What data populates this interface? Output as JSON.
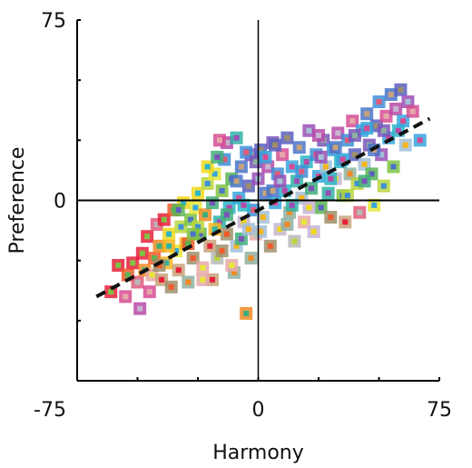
{
  "chart_data": {
    "type": "scatter",
    "title": "",
    "xlabel": "Harmony",
    "ylabel": "Preference",
    "xlim": [
      -75,
      75
    ],
    "ylim": [
      -75,
      75
    ],
    "x_tick_labels": [
      "-75",
      "0",
      "75"
    ],
    "y_tick_labels": [
      "75",
      "0"
    ],
    "grid": false,
    "legend": "none",
    "marker": "square-with-inner-square",
    "trendline": {
      "style": "dashed",
      "color": "#111111",
      "x": [
        -67,
        71
      ],
      "y": [
        -40,
        34
      ]
    },
    "point_colors": [
      "#e8203a",
      "#ef5a2a",
      "#f08a24",
      "#f6b51d",
      "#f1d81a",
      "#e8e63a",
      "#b7d63c",
      "#7fc241",
      "#5ab552",
      "#3fae7a",
      "#2fb3a6",
      "#2cb6c8",
      "#35a6dd",
      "#3e8fd8",
      "#4a74c9",
      "#5b5fbf",
      "#7a55b8",
      "#9a4fb5",
      "#b84aa8",
      "#d64c93",
      "#e05b7a",
      "#c9a27a",
      "#9e8f6a",
      "#8fb0a0",
      "#a3c0d8",
      "#c7b4d2",
      "#e6a9a9",
      "#b9b9b9"
    ],
    "points": [
      {
        "x": -61,
        "y": -38,
        "c": 0
      },
      {
        "x": -58,
        "y": -27,
        "c": 0
      },
      {
        "x": -55,
        "y": -40,
        "c": 19
      },
      {
        "x": -54,
        "y": -31,
        "c": 1
      },
      {
        "x": -52,
        "y": -26,
        "c": 0
      },
      {
        "x": -50,
        "y": -34,
        "c": 20
      },
      {
        "x": -49,
        "y": -45,
        "c": 18
      },
      {
        "x": -48,
        "y": -22,
        "c": 0
      },
      {
        "x": -47,
        "y": -29,
        "c": 2
      },
      {
        "x": -46,
        "y": -15,
        "c": 0
      },
      {
        "x": -45,
        "y": -38,
        "c": 19
      },
      {
        "x": -44,
        "y": -31,
        "c": 26
      },
      {
        "x": -43,
        "y": -24,
        "c": 1
      },
      {
        "x": -42,
        "y": -10,
        "c": 20
      },
      {
        "x": -41,
        "y": -19,
        "c": 2
      },
      {
        "x": -40,
        "y": -33,
        "c": 21
      },
      {
        "x": -39,
        "y": -8,
        "c": 0
      },
      {
        "x": -38,
        "y": -26,
        "c": 3
      },
      {
        "x": -37,
        "y": -14,
        "c": 4
      },
      {
        "x": -36,
        "y": -36,
        "c": 22
      },
      {
        "x": -35,
        "y": -4,
        "c": 1
      },
      {
        "x": -34,
        "y": -21,
        "c": 5
      },
      {
        "x": -33,
        "y": -29,
        "c": 21
      },
      {
        "x": -32,
        "y": -11,
        "c": 6
      },
      {
        "x": -31,
        "y": -1,
        "c": 4
      },
      {
        "x": -30,
        "y": -18,
        "c": 3
      },
      {
        "x": -29,
        "y": -34,
        "c": 23
      },
      {
        "x": -28,
        "y": -8,
        "c": 7
      },
      {
        "x": -27,
        "y": -24,
        "c": 22
      },
      {
        "x": -26,
        "y": -3,
        "c": 5
      },
      {
        "x": -25,
        "y": 3,
        "c": 4
      },
      {
        "x": -24,
        "y": -14,
        "c": 8
      },
      {
        "x": -23,
        "y": -28,
        "c": 26
      },
      {
        "x": -22,
        "y": -6,
        "c": 2
      },
      {
        "x": -21,
        "y": 7,
        "c": 6
      },
      {
        "x": -20,
        "y": -19,
        "c": 21
      },
      {
        "x": -19,
        "y": -1,
        "c": 9
      },
      {
        "x": -18,
        "y": 11,
        "c": 5
      },
      {
        "x": -17,
        "y": -24,
        "c": 27
      },
      {
        "x": -16,
        "y": -9,
        "c": 10
      },
      {
        "x": -15,
        "y": 4,
        "c": 7
      },
      {
        "x": -14,
        "y": 17,
        "c": 13
      },
      {
        "x": -13,
        "y": -14,
        "c": 22
      },
      {
        "x": -12,
        "y": -3,
        "c": 11
      },
      {
        "x": -11,
        "y": 9,
        "c": 8
      },
      {
        "x": -10,
        "y": -30,
        "c": 23
      },
      {
        "x": -9,
        "y": -19,
        "c": 24
      },
      {
        "x": -8,
        "y": 1,
        "c": 12
      },
      {
        "x": -7,
        "y": 14,
        "c": 14
      },
      {
        "x": -6,
        "y": -9,
        "c": 25
      },
      {
        "x": -5,
        "y": -47,
        "c": 2
      },
      {
        "x": -4,
        "y": 6,
        "c": 15
      },
      {
        "x": -3,
        "y": 19,
        "c": 16
      },
      {
        "x": -2,
        "y": -4,
        "c": 13
      },
      {
        "x": -1,
        "y": -14,
        "c": 26
      },
      {
        "x": 0,
        "y": 9,
        "c": 17
      },
      {
        "x": 1,
        "y": 21,
        "c": 15
      },
      {
        "x": 2,
        "y": -7,
        "c": 24
      },
      {
        "x": 3,
        "y": 3,
        "c": 14
      },
      {
        "x": 4,
        "y": 14,
        "c": 18
      },
      {
        "x": 5,
        "y": -19,
        "c": 22
      },
      {
        "x": 6,
        "y": 24,
        "c": 16
      },
      {
        "x": 7,
        "y": -1,
        "c": 12
      },
      {
        "x": 8,
        "y": 11,
        "c": 13
      },
      {
        "x": 9,
        "y": -12,
        "c": 25
      },
      {
        "x": 10,
        "y": 19,
        "c": 19
      },
      {
        "x": 11,
        "y": 4,
        "c": 11
      },
      {
        "x": 12,
        "y": 26,
        "c": 15
      },
      {
        "x": 13,
        "y": -5,
        "c": 23
      },
      {
        "x": 14,
        "y": 14,
        "c": 12
      },
      {
        "x": 15,
        "y": -17,
        "c": 27
      },
      {
        "x": 16,
        "y": 8,
        "c": 10
      },
      {
        "x": 17,
        "y": 22,
        "c": 14
      },
      {
        "x": 18,
        "y": 1,
        "c": 24
      },
      {
        "x": 19,
        "y": -9,
        "c": 26
      },
      {
        "x": 20,
        "y": 16,
        "c": 11
      },
      {
        "x": 21,
        "y": 29,
        "c": 17
      },
      {
        "x": 22,
        "y": 5,
        "c": 9
      },
      {
        "x": 23,
        "y": -13,
        "c": 25
      },
      {
        "x": 24,
        "y": 19,
        "c": 13
      },
      {
        "x": 25,
        "y": 10,
        "c": 12
      },
      {
        "x": 26,
        "y": -3,
        "c": 8
      },
      {
        "x": 27,
        "y": 25,
        "c": 16
      },
      {
        "x": 28,
        "y": 14,
        "c": 24
      },
      {
        "x": 29,
        "y": 3,
        "c": 10
      },
      {
        "x": 30,
        "y": -7,
        "c": 22
      },
      {
        "x": 31,
        "y": 21,
        "c": 12
      },
      {
        "x": 32,
        "y": 9,
        "c": 25
      },
      {
        "x": 33,
        "y": 28,
        "c": 18
      },
      {
        "x": 34,
        "y": 16,
        "c": 11
      },
      {
        "x": 35,
        "y": 2,
        "c": 7
      },
      {
        "x": 36,
        "y": -9,
        "c": 21
      },
      {
        "x": 37,
        "y": 25,
        "c": 13
      },
      {
        "x": 38,
        "y": 11,
        "c": 23
      },
      {
        "x": 39,
        "y": 33,
        "c": 19
      },
      {
        "x": 40,
        "y": 19,
        "c": 15
      },
      {
        "x": 41,
        "y": 7,
        "c": 6
      },
      {
        "x": 42,
        "y": -5,
        "c": 20
      },
      {
        "x": 43,
        "y": 29,
        "c": 12
      },
      {
        "x": 44,
        "y": 15,
        "c": 24
      },
      {
        "x": 45,
        "y": 36,
        "c": 14
      },
      {
        "x": 46,
        "y": 23,
        "c": 16
      },
      {
        "x": 47,
        "y": 11,
        "c": 8
      },
      {
        "x": 48,
        "y": -2,
        "c": 5
      },
      {
        "x": 49,
        "y": 31,
        "c": 15
      },
      {
        "x": 50,
        "y": 41,
        "c": 13
      },
      {
        "x": 51,
        "y": 19,
        "c": 17
      },
      {
        "x": 52,
        "y": 6,
        "c": 6
      },
      {
        "x": 53,
        "y": 35,
        "c": 19
      },
      {
        "x": 54,
        "y": 26,
        "c": 12
      },
      {
        "x": 55,
        "y": 44,
        "c": 14
      },
      {
        "x": 56,
        "y": 14,
        "c": 7
      },
      {
        "x": 57,
        "y": 38,
        "c": 18
      },
      {
        "x": 58,
        "y": 29,
        "c": 11
      },
      {
        "x": 59,
        "y": 46,
        "c": 15
      },
      {
        "x": 60,
        "y": 33,
        "c": 12
      },
      {
        "x": 61,
        "y": 23,
        "c": 24
      },
      {
        "x": 62,
        "y": 41,
        "c": 17
      },
      {
        "x": 64,
        "y": 37,
        "c": 19
      },
      {
        "x": 67,
        "y": 25,
        "c": 12
      },
      {
        "x": -29,
        "y": -18,
        "c": 1
      },
      {
        "x": -19,
        "y": -33,
        "c": 21
      },
      {
        "x": -25,
        "y": -11,
        "c": 6
      },
      {
        "x": -15,
        "y": -21,
        "c": 22
      },
      {
        "x": -11,
        "y": -27,
        "c": 26
      },
      {
        "x": -7,
        "y": -16,
        "c": 9
      },
      {
        "x": -3,
        "y": -24,
        "c": 23
      },
      {
        "x": 1,
        "y": -13,
        "c": 24
      },
      {
        "x": -21,
        "y": 14,
        "c": 4
      },
      {
        "x": -17,
        "y": 18,
        "c": 9
      },
      {
        "x": -13,
        "y": 24,
        "c": 18
      },
      {
        "x": -9,
        "y": 26,
        "c": 10
      },
      {
        "x": -5,
        "y": 20,
        "c": 13
      },
      {
        "x": -1,
        "y": 16,
        "c": 16
      },
      {
        "x": 3,
        "y": 18,
        "c": 12
      },
      {
        "x": 7,
        "y": 23,
        "c": 15
      },
      {
        "x": -16,
        "y": 25,
        "c": 19
      },
      {
        "x": -18,
        "y": -12,
        "c": 3
      },
      {
        "x": -6,
        "y": -2,
        "c": 11
      },
      {
        "x": 6,
        "y": 4,
        "c": 14
      },
      {
        "x": 14,
        "y": -2,
        "c": 10
      },
      {
        "x": 18,
        "y": 12,
        "c": 13
      },
      {
        "x": 26,
        "y": 18,
        "c": 17
      },
      {
        "x": 30,
        "y": 9,
        "c": 11
      },
      {
        "x": 35,
        "y": 17,
        "c": 12
      },
      {
        "x": 40,
        "y": 27,
        "c": 16
      },
      {
        "x": 44,
        "y": 8,
        "c": 9
      },
      {
        "x": 48,
        "y": 21,
        "c": 14
      },
      {
        "x": -33,
        "y": -4,
        "c": 8
      },
      {
        "x": -37,
        "y": -19,
        "c": 3
      },
      {
        "x": -41,
        "y": -27,
        "c": 22
      },
      {
        "x": -27,
        "y": -14,
        "c": 7
      },
      {
        "x": -23,
        "y": -33,
        "c": 26
      },
      {
        "x": -13,
        "y": -6,
        "c": 9
      },
      {
        "x": -9,
        "y": 8,
        "c": 14
      },
      {
        "x": -4,
        "y": -12,
        "c": 24
      },
      {
        "x": 9,
        "y": 8,
        "c": 17
      },
      {
        "x": 12,
        "y": -10,
        "c": 23
      },
      {
        "x": 21,
        "y": -3,
        "c": 25
      },
      {
        "x": 25,
        "y": 27,
        "c": 18
      },
      {
        "x": 32,
        "y": 22,
        "c": 14
      },
      {
        "x": 37,
        "y": 2,
        "c": 6
      },
      {
        "x": 45,
        "y": 30,
        "c": 12
      },
      {
        "x": 52,
        "y": 29,
        "c": 16
      }
    ]
  }
}
